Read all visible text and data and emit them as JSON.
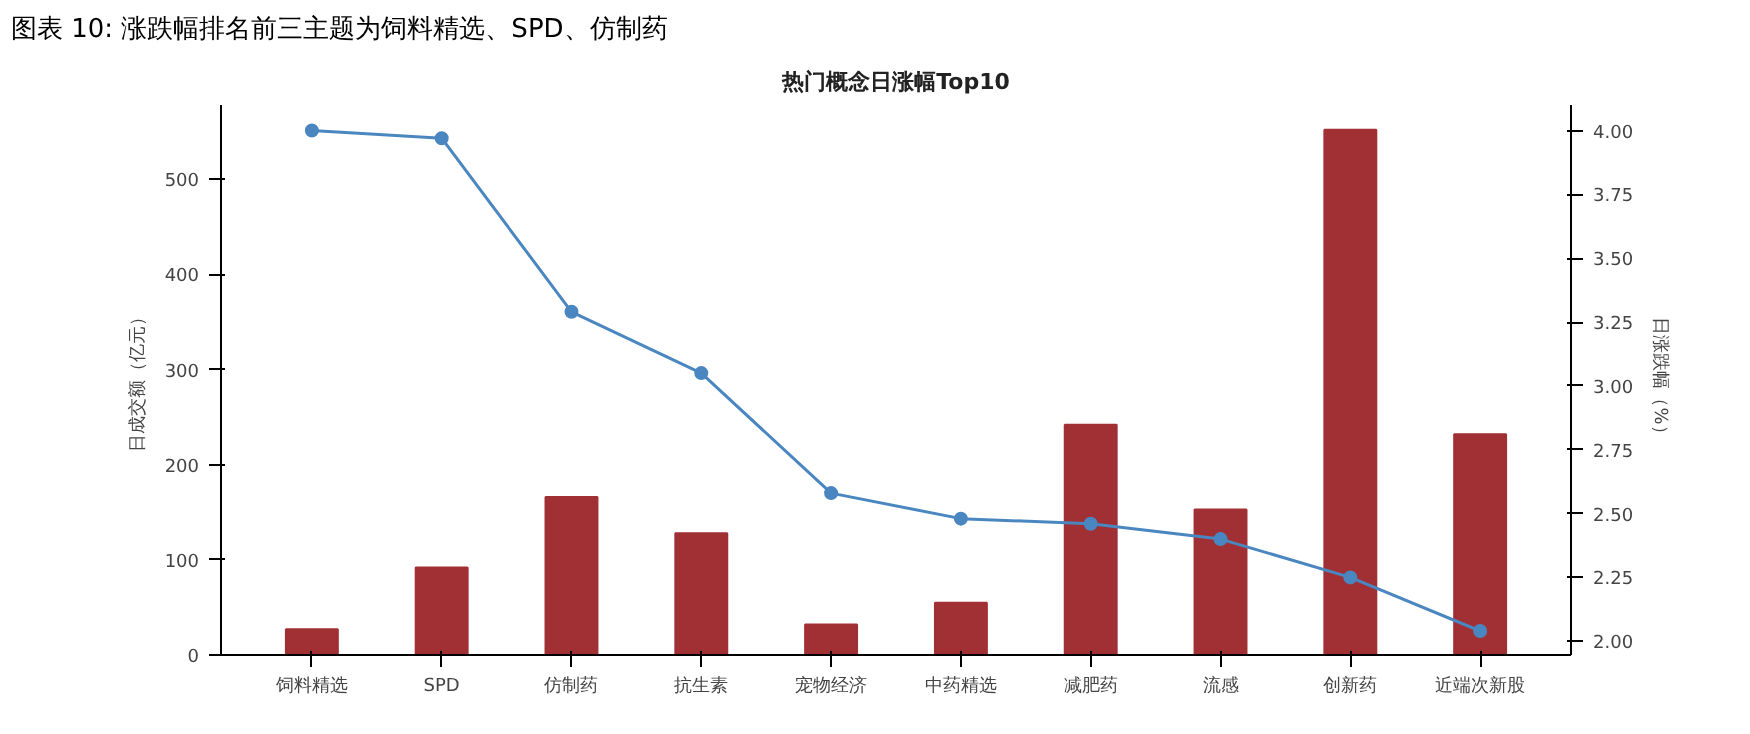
{
  "chart_data": {
    "type": "bar",
    "title": "图表 10: 涨跌幅排名前三主题为饲料精选、SPD、仿制药",
    "subtitle": "热门概念日涨幅Top10",
    "ylabel": "日成交额（亿元）",
    "y2label": "日涨跌幅（%）",
    "categories": [
      "饲料精选",
      "SPD",
      "仿制药",
      "抗生素",
      "宠物经济",
      "中药精选",
      "减肥药",
      "流感",
      "创新药",
      "近端次新股"
    ],
    "series": [
      {
        "color": "#a03034",
        "values": [
          27,
          92,
          166,
          128,
          32,
          55,
          242,
          153,
          552,
          232
        ]
      },
      {
        "type": "line",
        "axis": "y2",
        "color": "#4a86c0",
        "marker": "circle",
        "values": [
          4.0,
          3.97,
          3.29,
          3.05,
          2.58,
          2.48,
          2.46,
          2.4,
          2.25,
          2.04
        ]
      }
    ],
    "ylim": [
      0,
      578
    ],
    "yticks": [
      0,
      100,
      200,
      300,
      400,
      500
    ],
    "y2lim": [
      1.946,
      4.1
    ],
    "y2ticks": [
      {
        "value": 2.0,
        "label": "2.00"
      },
      {
        "value": 2.25,
        "label": "2.25"
      },
      {
        "value": 2.5,
        "label": "2.50"
      },
      {
        "value": 2.75,
        "label": "2.75"
      },
      {
        "value": 3.0,
        "label": "3.00"
      },
      {
        "value": 3.25,
        "label": "3.25"
      },
      {
        "value": 3.5,
        "label": "3.50"
      },
      {
        "value": 3.75,
        "label": "3.75"
      },
      {
        "value": 4.0,
        "label": "4.00"
      }
    ],
    "grid": false
  }
}
